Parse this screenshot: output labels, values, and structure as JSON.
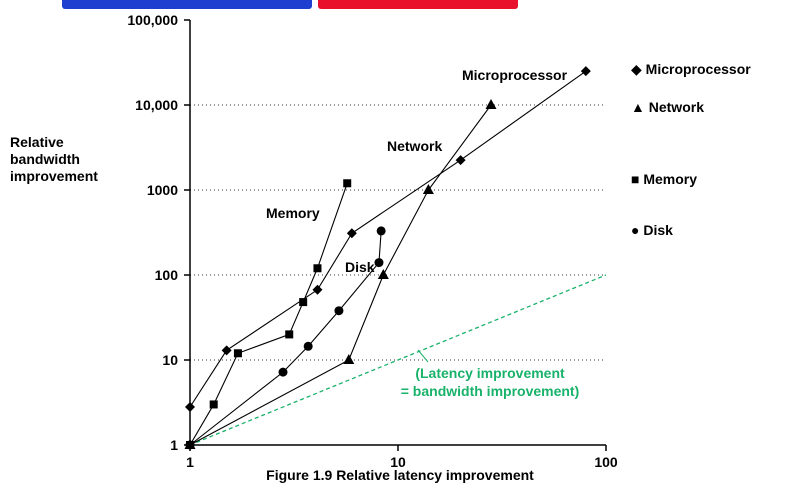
{
  "chart_data": {
    "type": "scatter",
    "title": "Figure 1.9 Relative latency improvement",
    "xlabel": "",
    "ylabel_lines": [
      "Relative",
      "bandwidth",
      "improvement"
    ],
    "xscale": "log",
    "yscale": "log",
    "xlim": [
      1,
      100
    ],
    "ylim": [
      1,
      100000
    ],
    "x_ticks": [
      {
        "value": 1,
        "label": "1"
      },
      {
        "value": 10,
        "label": "10"
      },
      {
        "value": 100,
        "label": "100"
      }
    ],
    "y_ticks": [
      {
        "value": 1,
        "label": "1"
      },
      {
        "value": 10,
        "label": "10"
      },
      {
        "value": 100,
        "label": "100"
      },
      {
        "value": 1000,
        "label": "1000"
      },
      {
        "value": 10000,
        "label": "10,000"
      },
      {
        "value": 100000,
        "label": "100,000"
      }
    ],
    "grid": "horizontal dotted at each decade",
    "series": [
      {
        "name": "Microprocessor",
        "marker": "diamond",
        "label": "Microprocessor",
        "points": [
          [
            1,
            2.8
          ],
          [
            1.5,
            13
          ],
          [
            4.1,
            67
          ],
          [
            6,
            310
          ],
          [
            20,
            2250
          ],
          [
            80,
            25000
          ]
        ]
      },
      {
        "name": "Network",
        "marker": "triangle",
        "label": "Network",
        "points": [
          [
            1,
            1
          ],
          [
            5.8,
            10
          ],
          [
            8.5,
            100
          ],
          [
            14,
            1000
          ],
          [
            28,
            10000
          ]
        ]
      },
      {
        "name": "Memory",
        "marker": "square",
        "label": "Memory",
        "points": [
          [
            1,
            1
          ],
          [
            1.3,
            3
          ],
          [
            1.7,
            12
          ],
          [
            3,
            20
          ],
          [
            3.5,
            48
          ],
          [
            4.1,
            120
          ],
          [
            5.7,
            1200
          ]
        ]
      },
      {
        "name": "Disk",
        "marker": "circle",
        "label": "Disk",
        "points": [
          [
            1,
            1
          ],
          [
            2.8,
            7.2
          ],
          [
            3.7,
            14.5
          ],
          [
            5.2,
            38
          ],
          [
            8.1,
            140
          ],
          [
            8.3,
            330
          ]
        ]
      }
    ],
    "reference_line": {
      "points": [
        [
          1,
          1
        ],
        [
          100,
          100
        ]
      ],
      "label_lines": [
        "(Latency improvement",
        "= bandwidth improvement)"
      ],
      "color": "#19b26a"
    },
    "legend": {
      "placement": "right",
      "entries": [
        {
          "symbol": "◆",
          "text": "Microprocessor"
        },
        {
          "symbol": "▲",
          "text": "Network"
        },
        {
          "symbol": "■",
          "text": "Memory"
        },
        {
          "symbol": "●",
          "text": "Disk"
        }
      ]
    }
  }
}
